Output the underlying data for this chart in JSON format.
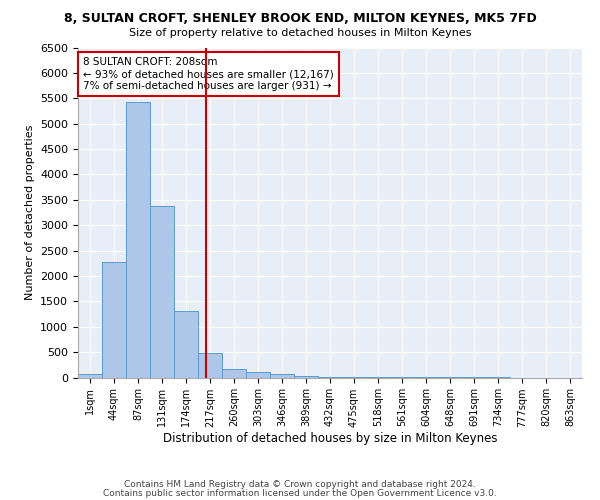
{
  "title": "8, SULTAN CROFT, SHENLEY BROOK END, MILTON KEYNES, MK5 7FD",
  "subtitle": "Size of property relative to detached houses in Milton Keynes",
  "xlabel": "Distribution of detached houses by size in Milton Keynes",
  "ylabel": "Number of detached properties",
  "bar_labels": [
    "1sqm",
    "44sqm",
    "87sqm",
    "131sqm",
    "174sqm",
    "217sqm",
    "260sqm",
    "303sqm",
    "346sqm",
    "389sqm",
    "432sqm",
    "475sqm",
    "518sqm",
    "561sqm",
    "604sqm",
    "648sqm",
    "691sqm",
    "734sqm",
    "777sqm",
    "820sqm",
    "863sqm"
  ],
  "bar_values": [
    75,
    2270,
    5430,
    3380,
    1310,
    480,
    165,
    100,
    65,
    30,
    10,
    5,
    5,
    2,
    2,
    1,
    1,
    1,
    0,
    0,
    0
  ],
  "bar_color": "#aec6e8",
  "bar_edgecolor": "#5b9bd5",
  "vline_x": 4.82,
  "vline_color": "#cc0000",
  "annotation_text": "8 SULTAN CROFT: 208sqm\n← 93% of detached houses are smaller (12,167)\n7% of semi-detached houses are larger (931) →",
  "annotation_box_color": "#cc0000",
  "ylim": [
    0,
    6500
  ],
  "yticks": [
    0,
    500,
    1000,
    1500,
    2000,
    2500,
    3000,
    3500,
    4000,
    4500,
    5000,
    5500,
    6000,
    6500
  ],
  "plot_bg_color": "#e8eef7",
  "footer_line1": "Contains HM Land Registry data © Crown copyright and database right 2024.",
  "footer_line2": "Contains public sector information licensed under the Open Government Licence v3.0.",
  "figsize": [
    6.0,
    5.0
  ],
  "dpi": 100
}
